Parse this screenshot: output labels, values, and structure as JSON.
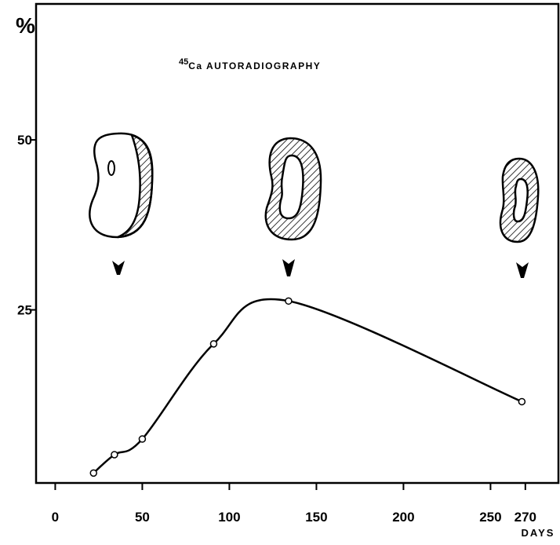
{
  "chart_data": {
    "type": "line",
    "title_isotope": "45",
    "title": "Ca AUTORADIOGRAPHY",
    "y_label": "%",
    "x_label": "DAYS",
    "x": [
      22,
      34,
      50,
      91,
      134,
      268
    ],
    "series": [
      {
        "color": "#000000",
        "values": [
          1,
          3.7,
          6,
          20,
          26.3,
          11.5
        ]
      }
    ],
    "xlim": [
      -11,
      289
    ],
    "ylim": [
      0,
      70
    ],
    "xticks": [
      0,
      50,
      100,
      150,
      200,
      250,
      270
    ],
    "yticks": [
      25,
      50
    ]
  }
}
